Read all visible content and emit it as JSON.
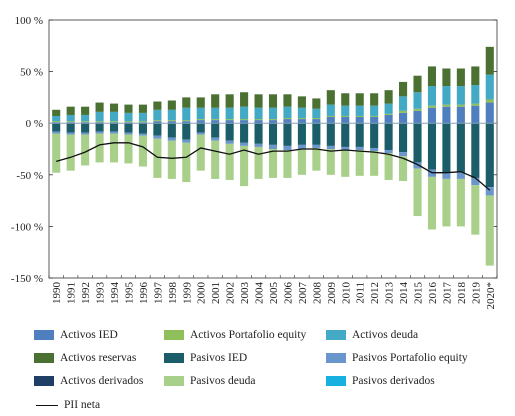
{
  "chart_data": {
    "type": "bar",
    "stacked": true,
    "title": "",
    "xlabel": "",
    "ylabel": "",
    "ylim": [
      -150,
      100
    ],
    "yticks": [
      -150,
      -100,
      -50,
      0,
      50,
      100
    ],
    "ytick_labels": [
      "-150 %",
      "-100 %",
      "-50 %",
      "0 %",
      "50 %",
      "100 %"
    ],
    "grid": false,
    "legend_position": "bottom",
    "categories": [
      "1990",
      "1991",
      "1992",
      "1993",
      "1994",
      "1995",
      "1996",
      "1997",
      "1998",
      "1999",
      "2000",
      "2001",
      "2002",
      "2003",
      "2004",
      "2005",
      "2006",
      "2007",
      "2008",
      "2009",
      "2010",
      "2011",
      "2012",
      "2013",
      "2014",
      "2015",
      "2016",
      "2017",
      "2018",
      "2019",
      "2020*"
    ],
    "series": [
      {
        "name": "Activos IED",
        "color": "#4f7fbf",
        "values": [
          1,
          1,
          1,
          1,
          1,
          1,
          1,
          2,
          2,
          2,
          3,
          3,
          3,
          3,
          3,
          3,
          4,
          4,
          4,
          6,
          6,
          6,
          6,
          8,
          10,
          12,
          15,
          16,
          16,
          17,
          20
        ]
      },
      {
        "name": "Activos Portafolio equity",
        "color": "#8fbf5a",
        "values": [
          1,
          1,
          1,
          1,
          1,
          1,
          1,
          1,
          1,
          1,
          1,
          1,
          1,
          1,
          1,
          1,
          1,
          1,
          1,
          1,
          1,
          1,
          1,
          1,
          2,
          2,
          2,
          2,
          2,
          2,
          3
        ]
      },
      {
        "name": "Activos deuda",
        "color": "#44a9c4",
        "values": [
          5,
          6,
          6,
          9,
          9,
          8,
          8,
          10,
          10,
          12,
          11,
          11,
          11,
          12,
          11,
          11,
          11,
          10,
          9,
          11,
          10,
          10,
          10,
          10,
          14,
          16,
          19,
          18,
          18,
          18,
          24
        ]
      },
      {
        "name": "Activos reservas",
        "color": "#4a7032",
        "values": [
          6,
          8,
          8,
          9,
          8,
          8,
          8,
          8,
          9,
          10,
          10,
          13,
          13,
          14,
          13,
          13,
          12,
          11,
          10,
          14,
          12,
          12,
          12,
          13,
          14,
          16,
          19,
          17,
          17,
          18,
          27
        ]
      },
      {
        "name": "Pasivos IED",
        "color": "#1b5e6a",
        "values": [
          -8,
          -9,
          -9,
          -8,
          -8,
          -9,
          -10,
          -12,
          -14,
          -16,
          -9,
          -14,
          -17,
          -19,
          -20,
          -21,
          -22,
          -21,
          -21,
          -22,
          -23,
          -23,
          -24,
          -26,
          -28,
          -38,
          -45,
          -48,
          -48,
          -53,
          -62
        ]
      },
      {
        "name": "Pasivos Portafolio equity",
        "color": "#6b96cc",
        "values": [
          -2,
          -2,
          -2,
          -2,
          -2,
          -2,
          -2,
          -3,
          -3,
          -3,
          -2,
          -3,
          -3,
          -3,
          -3,
          -4,
          -4,
          -4,
          -3,
          -3,
          -3,
          -3,
          -3,
          -3,
          -4,
          -6,
          -7,
          -6,
          -6,
          -7,
          -8
        ]
      },
      {
        "name": "Activos derivados",
        "color": "#1f3f66",
        "values": [
          0,
          0,
          0,
          0,
          0,
          0,
          0,
          0,
          0,
          0,
          0,
          0,
          0,
          0,
          0,
          0,
          0,
          0,
          0,
          0,
          0,
          0,
          0,
          0,
          0,
          0,
          0,
          0,
          0,
          0,
          0
        ]
      },
      {
        "name": "Pasivos deuda",
        "color": "#a9d08a",
        "values": [
          -38,
          -35,
          -30,
          -28,
          -28,
          -28,
          -30,
          -38,
          -37,
          -38,
          -35,
          -37,
          -35,
          -39,
          -31,
          -28,
          -27,
          -25,
          -22,
          -25,
          -26,
          -25,
          -24,
          -26,
          -24,
          -46,
          -51,
          -46,
          -46,
          -48,
          -68
        ]
      },
      {
        "name": "Pasivos derivados",
        "color": "#17b0e0",
        "values": [
          0,
          0,
          0,
          0,
          0,
          0,
          0,
          0,
          0,
          0,
          0,
          0,
          0,
          0,
          0,
          0,
          0,
          0,
          0,
          0,
          0,
          0,
          0,
          0,
          0,
          0,
          0,
          0,
          0,
          0,
          0
        ]
      }
    ],
    "line_series": {
      "name": "PII neta",
      "color": "#111111",
      "values": [
        -37,
        -33,
        -28,
        -21,
        -19,
        -19,
        -23,
        -33,
        -34,
        -33,
        -24,
        -27,
        -30,
        -26,
        -30,
        -27,
        -27,
        -25,
        -25,
        -27,
        -26,
        -27,
        -28,
        -30,
        -34,
        -40,
        -48,
        -48,
        -47,
        -53,
        -65
      ]
    }
  }
}
